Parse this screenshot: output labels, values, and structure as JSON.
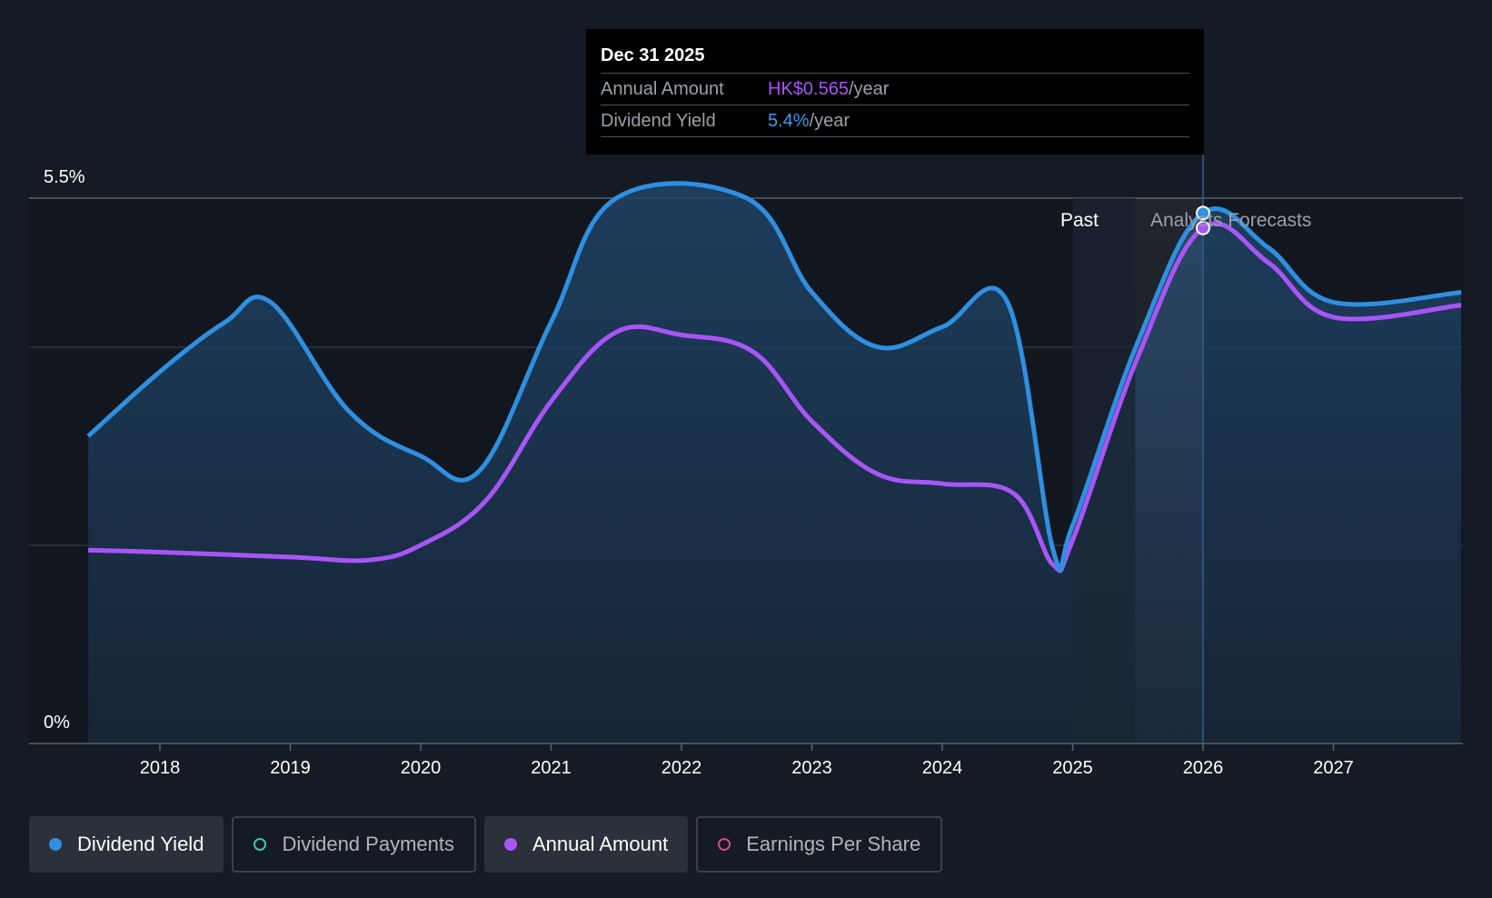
{
  "chart_data": {
    "type": "area",
    "y_axis": {
      "min_label": "0%",
      "max_label": "5.5%",
      "ylim": [
        0,
        5.5
      ]
    },
    "x_ticks": [
      "2018",
      "2019",
      "2020",
      "2021",
      "2022",
      "2023",
      "2024",
      "2025",
      "2026",
      "2027"
    ],
    "grid": true,
    "series": [
      {
        "name": "Dividend Yield",
        "color": "#2f8fe0",
        "x": [
          2017.45,
          2018.0,
          2018.5,
          2018.85,
          2019.45,
          2020.0,
          2020.45,
          2021.0,
          2021.5,
          2022.5,
          2023.0,
          2023.5,
          2024.0,
          2024.5,
          2024.85,
          2025.0,
          2025.5,
          2026.0,
          2026.5,
          2027.0,
          2027.98
        ],
        "values": [
          3.1,
          3.75,
          4.25,
          4.45,
          3.35,
          2.9,
          2.75,
          4.25,
          5.5,
          5.5,
          4.55,
          4.0,
          4.2,
          4.45,
          1.95,
          2.2,
          4.05,
          5.35,
          5.0,
          4.45,
          4.55
        ]
      },
      {
        "name": "Annual Amount",
        "color": "#a855f7",
        "x": [
          2017.45,
          2018.0,
          2019.0,
          2019.6,
          2020.0,
          2020.5,
          2021.0,
          2021.5,
          2022.0,
          2022.55,
          2023.0,
          2023.5,
          2024.0,
          2024.55,
          2024.85,
          2025.0,
          2025.5,
          2026.0,
          2026.5,
          2027.0,
          2027.98
        ],
        "values": [
          1.95,
          1.93,
          1.88,
          1.85,
          2.0,
          2.45,
          3.45,
          4.15,
          4.12,
          3.95,
          3.25,
          2.72,
          2.62,
          2.52,
          1.8,
          2.05,
          3.9,
          5.2,
          4.85,
          4.3,
          4.42
        ]
      }
    ],
    "past_label": "Past",
    "forecast_label": "Analysts Forecasts"
  },
  "tooltip": {
    "date": "Dec 31 2025",
    "row1_label": "Annual Amount",
    "row1_value": "HK$0.565",
    "row1_unit": "/year",
    "row2_label": "Dividend Yield",
    "row2_value": "5.4%",
    "row2_unit": "/year"
  },
  "legend": [
    {
      "label": "Dividend Yield",
      "color": "#2f8fe0",
      "active": true
    },
    {
      "label": "Dividend Payments",
      "color": "#3fc5b5",
      "active": false
    },
    {
      "label": "Annual Amount",
      "color": "#a855f7",
      "active": true
    },
    {
      "label": "Earnings Per Share",
      "color": "#d14b86",
      "active": false
    }
  ]
}
